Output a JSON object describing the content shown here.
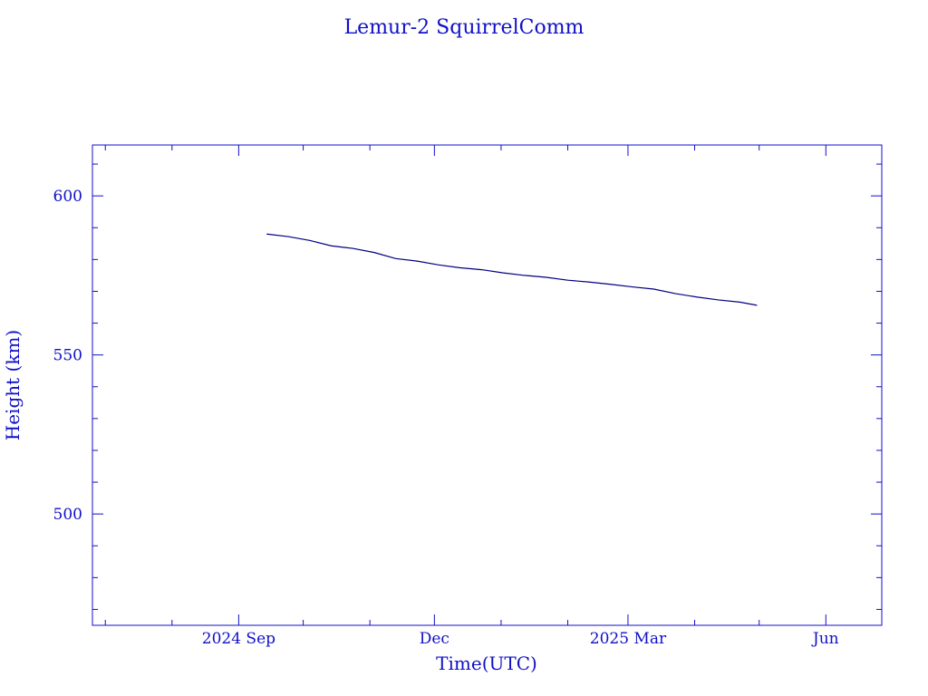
{
  "chart_data": {
    "type": "line",
    "title": "Lemur-2 SquirrelComm",
    "xlabel": "Time(UTC)",
    "ylabel": "Height (km)",
    "x_type": "date",
    "xlim": [
      "2024-06-25",
      "2025-06-27"
    ],
    "ylim": [
      465,
      616
    ],
    "x_ticks": [
      {
        "label": "2024 Sep",
        "value": "2024-09-01"
      },
      {
        "label": "Dec",
        "value": "2024-12-01"
      },
      {
        "label": "2025 Mar",
        "value": "2025-03-01"
      },
      {
        "label": "Jun",
        "value": "2025-06-01"
      }
    ],
    "y_ticks": [
      {
        "label": "500",
        "value": 500
      },
      {
        "label": "550",
        "value": 550
      },
      {
        "label": "600",
        "value": 600
      }
    ],
    "grid": false,
    "series": [
      {
        "color": "#000080",
        "points": [
          {
            "x": "2024-09-14",
            "y": 588.0
          },
          {
            "x": "2024-09-24",
            "y": 587.2
          },
          {
            "x": "2024-10-04",
            "y": 586.0
          },
          {
            "x": "2024-10-14",
            "y": 584.3
          },
          {
            "x": "2024-10-24",
            "y": 583.5
          },
          {
            "x": "2024-11-03",
            "y": 582.2
          },
          {
            "x": "2024-11-13",
            "y": 580.3
          },
          {
            "x": "2024-11-23",
            "y": 579.5
          },
          {
            "x": "2024-12-03",
            "y": 578.3
          },
          {
            "x": "2024-12-13",
            "y": 577.4
          },
          {
            "x": "2024-12-23",
            "y": 576.8
          },
          {
            "x": "2025-01-02",
            "y": 575.8
          },
          {
            "x": "2025-01-12",
            "y": 575.0
          },
          {
            "x": "2025-01-22",
            "y": 574.4
          },
          {
            "x": "2025-02-01",
            "y": 573.5
          },
          {
            "x": "2025-02-11",
            "y": 572.9
          },
          {
            "x": "2025-02-21",
            "y": 572.2
          },
          {
            "x": "2025-03-03",
            "y": 571.4
          },
          {
            "x": "2025-03-13",
            "y": 570.7
          },
          {
            "x": "2025-03-23",
            "y": 569.3
          },
          {
            "x": "2025-04-02",
            "y": 568.2
          },
          {
            "x": "2025-04-12",
            "y": 567.3
          },
          {
            "x": "2025-04-22",
            "y": 566.6
          },
          {
            "x": "2025-04-30",
            "y": 565.6
          }
        ]
      }
    ]
  }
}
